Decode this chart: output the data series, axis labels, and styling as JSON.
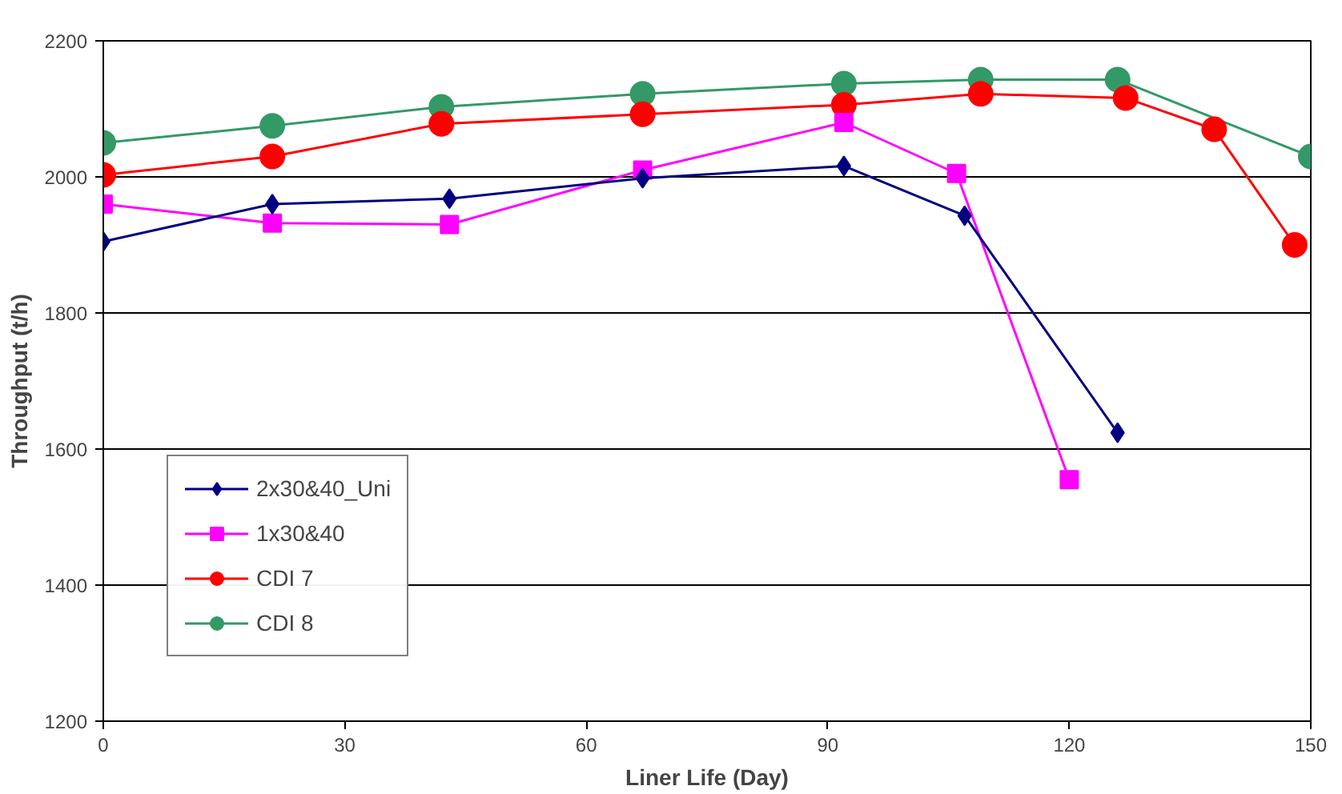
{
  "chart_data": {
    "type": "line",
    "xlabel": "Liner Life (Day)",
    "ylabel": "Throughput (t/h)",
    "xlim": [
      0,
      150
    ],
    "xticks": [
      0,
      30,
      60,
      90,
      120,
      150
    ],
    "ylim": [
      1200,
      2200
    ],
    "yticks": [
      1200,
      1400,
      1600,
      1800,
      2000,
      2200
    ],
    "grid": "y",
    "legend": "bottom left",
    "line_style": "solid",
    "series": [
      {
        "name": "2x30&40_Uni",
        "color": "#000080",
        "marker": "diamond",
        "x": [
          0,
          21,
          43,
          67,
          92,
          107,
          126
        ],
        "values": [
          1905,
          1960,
          1968,
          1998,
          2016,
          1943,
          1624
        ]
      },
      {
        "name": "1x30&40",
        "color": "#ff00ff",
        "marker": "square",
        "x": [
          0,
          21,
          43,
          67,
          92,
          106,
          120
        ],
        "values": [
          1960,
          1932,
          1930,
          2010,
          2080,
          2005,
          1555
        ]
      },
      {
        "name": "CDI 7",
        "color": "#ff0000",
        "marker": "circle",
        "x": [
          0,
          21,
          42,
          67,
          92,
          109,
          127,
          138,
          148
        ],
        "values": [
          2003,
          2030,
          2078,
          2092,
          2106,
          2122,
          2116,
          2070,
          1900
        ]
      },
      {
        "name": "CDI 8",
        "color": "#339966",
        "marker": "circle",
        "x": [
          0,
          21,
          42,
          67,
          92,
          109,
          126,
          150
        ],
        "values": [
          2050,
          2075,
          2103,
          2122,
          2137,
          2143,
          2143,
          2030
        ]
      }
    ]
  }
}
